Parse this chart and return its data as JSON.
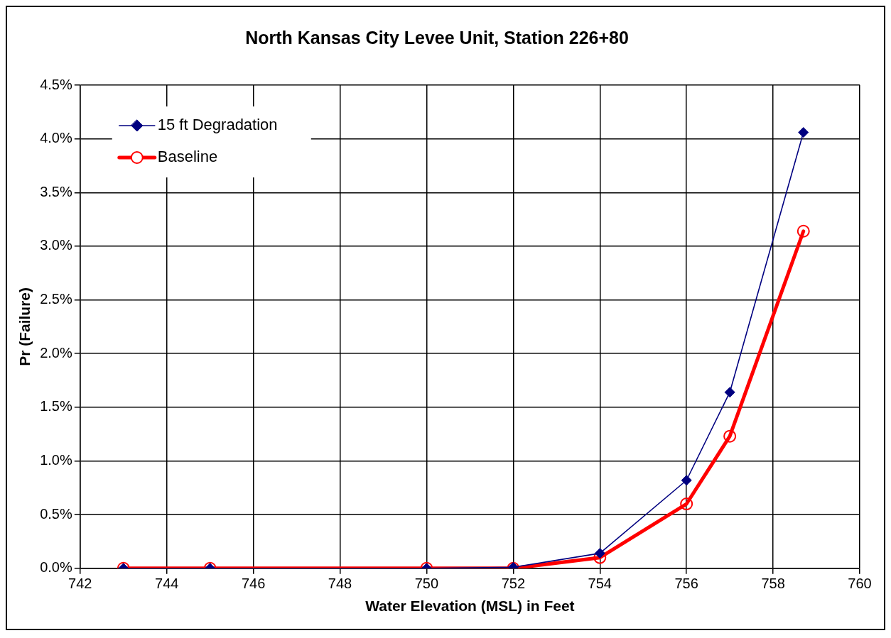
{
  "chart_data": {
    "type": "line",
    "title": "North Kansas City Levee Unit, Station 226+80",
    "xlabel": "Water Elevation (MSL) in Feet",
    "ylabel": "Pr (Failure)",
    "x": [
      743,
      745,
      750,
      752,
      754,
      756,
      757,
      758.7
    ],
    "series": [
      {
        "name": "15 ft Degradation",
        "color": "#000080",
        "marker": "diamond",
        "values": [
          0,
          0,
          0,
          0.01,
          0.14,
          0.82,
          1.64,
          4.06
        ]
      },
      {
        "name": "Baseline",
        "color": "#ff0000",
        "marker": "circle",
        "values": [
          0,
          0,
          0,
          0,
          0.1,
          0.6,
          1.23,
          3.14
        ]
      }
    ],
    "xlim": [
      742,
      760
    ],
    "xticks": [
      742,
      744,
      746,
      748,
      750,
      752,
      754,
      756,
      758,
      760
    ],
    "ylim": [
      0,
      4.5
    ],
    "yticks": [
      {
        "value": 0,
        "label": "0.0%"
      },
      {
        "value": 0.5,
        "label": "0.5%"
      },
      {
        "value": 1,
        "label": "1.0%"
      },
      {
        "value": 1.5,
        "label": "1.5%"
      },
      {
        "value": 2,
        "label": "2.0%"
      },
      {
        "value": 2.5,
        "label": "2.5%"
      },
      {
        "value": 3,
        "label": "3.0%"
      },
      {
        "value": 3.5,
        "label": "3.5%"
      },
      {
        "value": 4,
        "label": "4.0%"
      },
      {
        "value": 4.5,
        "label": "4.5%"
      }
    ],
    "grid": true,
    "legend": "top left"
  }
}
